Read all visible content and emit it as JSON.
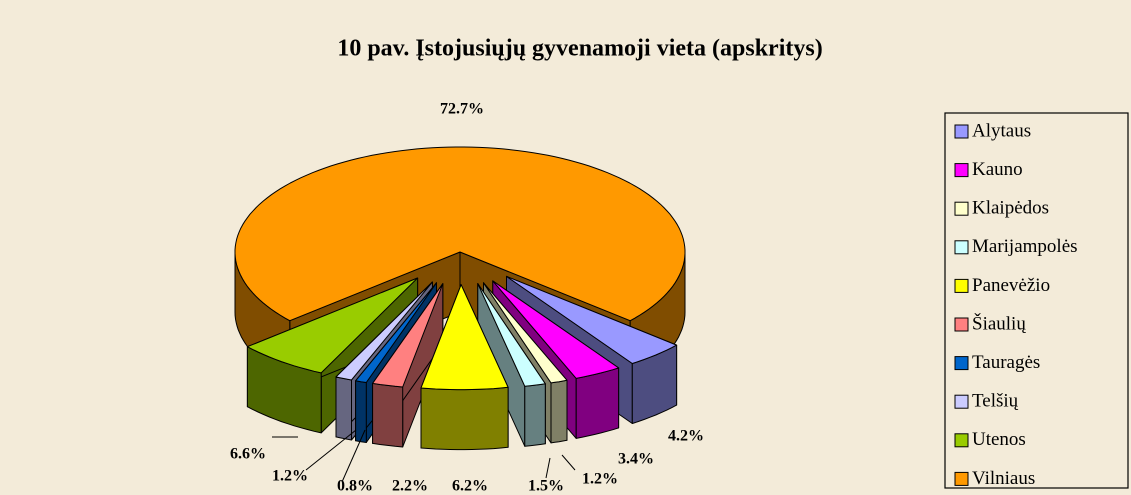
{
  "chart_data": {
    "type": "pie3d",
    "title": "10 pav. Įstojusiųjų gyvenamoji vieta (apskritys)",
    "categories": [
      "Alytaus",
      "Kauno",
      "Klaipėdos",
      "Marijampolės",
      "Panevėžio",
      "Šiaulių",
      "Tauragės",
      "Telšių",
      "Utenos",
      "Vilniaus"
    ],
    "values": [
      4.2,
      3.4,
      1.2,
      1.5,
      6.2,
      2.2,
      0.8,
      1.2,
      6.6,
      72.7
    ],
    "value_labels": [
      "4.2%",
      "3.4%",
      "1.2%",
      "1.5%",
      "6.2%",
      "2.2%",
      "0.8%",
      "1.2%",
      "6.6%",
      "72.7%"
    ],
    "colors": [
      "#9999FF",
      "#FF00FF",
      "#FFFFCC",
      "#CCFFFF",
      "#FFFF00",
      "#FF8080",
      "#0066CC",
      "#CCCCFF",
      "#99CC00",
      "#FF9900"
    ],
    "legend": "right"
  }
}
